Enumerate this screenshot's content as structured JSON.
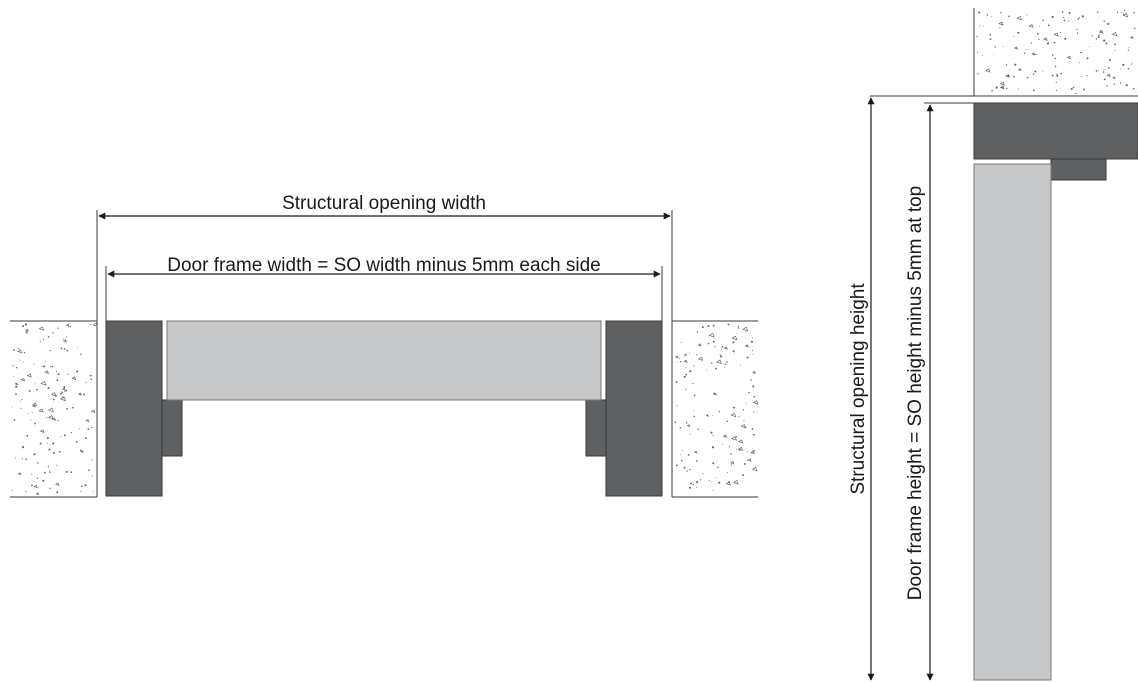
{
  "labels": {
    "structural_opening_width": "Structural opening width",
    "door_frame_width": "Door frame width = SO width minus 5mm each side",
    "structural_opening_height": "Structural opening height",
    "door_frame_height": "Door frame height = SO height minus 5mm at top"
  },
  "colors": {
    "frame_dark": "#5f6062",
    "door_leaf": "#c6c7c8",
    "stop_bead": "#5f6062",
    "concrete_fill": "#ffffff",
    "concrete_dots": "#6a6a6a",
    "dimension_line": "#1a1a1a"
  }
}
